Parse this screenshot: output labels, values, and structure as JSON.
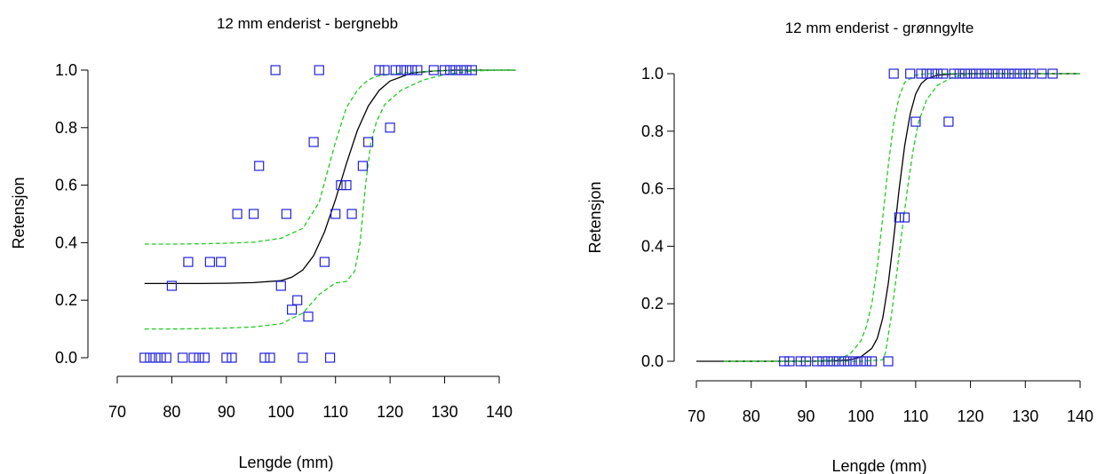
{
  "colors": {
    "points": "#2222dd",
    "fit": "#000000",
    "ci": "#22cc22",
    "axis": "#000000"
  },
  "chart_data": [
    {
      "type": "scatter",
      "title": "12 mm enderist - bergnebb",
      "xlabel": "Lengde (mm)",
      "ylabel": "Retensjon",
      "xlim": [
        70,
        140
      ],
      "ylim": [
        0,
        1
      ],
      "xticks": [
        "70",
        "80",
        "90",
        "100",
        "110",
        "120",
        "130",
        "140"
      ],
      "yticks": [
        "0.0",
        "0.2",
        "0.4",
        "0.6",
        "0.8",
        "1.0"
      ],
      "grid": false,
      "legend": "none",
      "series": [
        {
          "kind": "points",
          "marker": "square-open",
          "x": [
            75,
            76,
            77,
            78,
            79,
            80,
            82,
            83,
            84,
            85,
            86,
            87,
            89,
            90,
            91,
            92,
            95,
            96,
            97,
            98,
            99,
            100,
            101,
            102,
            103,
            104,
            105,
            106,
            107,
            108,
            109,
            110,
            111,
            112,
            113,
            115,
            116,
            118,
            119,
            120,
            121,
            122,
            123,
            124,
            125,
            128,
            130,
            131,
            132,
            133,
            134,
            135
          ],
          "y": [
            0,
            0,
            0,
            0,
            0,
            0.25,
            0,
            0.333,
            0,
            0,
            0,
            0.333,
            0.333,
            0,
            0,
            0.5,
            0.5,
            0.667,
            0,
            0,
            1,
            0.25,
            0.5,
            0.167,
            0.2,
            0,
            0.143,
            0.75,
            1,
            0.333,
            0,
            0.5,
            0.6,
            0.6,
            0.5,
            0.667,
            0.75,
            1,
            1,
            0.8,
            1,
            1,
            1,
            1,
            1,
            1,
            1,
            1,
            1,
            1,
            1,
            1
          ]
        },
        {
          "kind": "line",
          "style": "solid",
          "x": [
            75,
            80,
            85,
            90,
            95,
            100,
            102,
            104,
            106,
            108,
            110,
            112,
            114,
            116,
            118,
            120,
            124,
            128,
            132,
            136,
            140,
            143
          ],
          "y": [
            0.258,
            0.258,
            0.258,
            0.259,
            0.261,
            0.268,
            0.28,
            0.305,
            0.355,
            0.438,
            0.55,
            0.675,
            0.79,
            0.875,
            0.93,
            0.962,
            0.99,
            0.997,
            1,
            1,
            1,
            1
          ]
        },
        {
          "kind": "line",
          "style": "dashed",
          "x": [
            75,
            80,
            85,
            90,
            95,
            100,
            104,
            107,
            110,
            112,
            114,
            115,
            116,
            117,
            118,
            122,
            128,
            135,
            140,
            143
          ],
          "y": [
            0.395,
            0.395,
            0.396,
            0.398,
            0.402,
            0.415,
            0.45,
            0.54,
            0.75,
            0.87,
            0.93,
            0.95,
            0.965,
            0.975,
            0.98,
            0.99,
            0.997,
            1,
            1,
            1
          ]
        },
        {
          "kind": "line",
          "style": "dashed",
          "x": [
            75,
            80,
            85,
            90,
            95,
            100,
            104,
            107,
            110,
            112,
            113.5,
            114.5,
            115.5,
            116.5,
            117.5,
            119,
            122,
            126,
            130,
            135,
            140,
            143
          ],
          "y": [
            0.1,
            0.1,
            0.101,
            0.103,
            0.107,
            0.118,
            0.155,
            0.22,
            0.26,
            0.265,
            0.3,
            0.4,
            0.6,
            0.75,
            0.82,
            0.88,
            0.93,
            0.965,
            0.985,
            0.997,
            1,
            1
          ]
        }
      ]
    },
    {
      "type": "scatter",
      "title": "12 mm enderist - grønngylte",
      "xlabel": "Lengde (mm)",
      "ylabel": "Retensjon",
      "xlim": [
        70,
        140
      ],
      "ylim": [
        0,
        1
      ],
      "xticks": [
        "70",
        "80",
        "90",
        "100",
        "110",
        "120",
        "130",
        "140"
      ],
      "yticks": [
        "0.0",
        "0.2",
        "0.4",
        "0.6",
        "0.8",
        "1.0"
      ],
      "grid": false,
      "legend": "none",
      "series": [
        {
          "kind": "points",
          "marker": "square-open",
          "x": [
            86,
            87,
            89,
            90,
            92,
            93,
            94,
            95,
            96,
            97,
            98,
            99,
            100,
            101,
            102,
            105,
            106,
            107,
            108,
            109,
            110,
            111,
            112,
            113,
            114,
            115,
            116,
            117,
            118,
            119,
            120,
            121,
            122,
            123,
            124,
            125,
            126,
            127,
            128,
            129,
            130,
            131,
            133,
            135
          ],
          "y": [
            0,
            0,
            0,
            0,
            0,
            0,
            0,
            0,
            0,
            0,
            0,
            0,
            0,
            0,
            0,
            0,
            1,
            0.5,
            0.5,
            1,
            0.833,
            1,
            1,
            1,
            1,
            1,
            0.833,
            1,
            1,
            1,
            1,
            1,
            1,
            1,
            1,
            1,
            1,
            1,
            1,
            1,
            1,
            1,
            1,
            1
          ]
        },
        {
          "kind": "line",
          "style": "solid",
          "x": [
            70,
            90,
            95,
            98,
            100,
            102,
            103,
            104,
            105,
            106,
            107,
            108,
            109,
            110,
            111,
            112,
            114,
            118,
            125,
            140
          ],
          "y": [
            0,
            0,
            0.001,
            0.005,
            0.015,
            0.045,
            0.08,
            0.15,
            0.27,
            0.43,
            0.6,
            0.75,
            0.86,
            0.93,
            0.965,
            0.982,
            0.995,
            1,
            1,
            1
          ]
        },
        {
          "kind": "line",
          "style": "dashed",
          "x": [
            75,
            92,
            96,
            98,
            100,
            101,
            102,
            103,
            104,
            105,
            106,
            107,
            108,
            110,
            112,
            120
          ],
          "y": [
            0,
            0.001,
            0.008,
            0.025,
            0.07,
            0.12,
            0.2,
            0.33,
            0.5,
            0.68,
            0.83,
            0.92,
            0.97,
            0.995,
            1,
            1
          ]
        },
        {
          "kind": "line",
          "style": "dashed",
          "x": [
            75,
            100,
            104,
            104.5,
            105.5,
            106.5,
            107.5,
            108.5,
            109.5,
            110.5,
            112,
            114,
            117,
            120,
            125,
            140
          ],
          "y": [
            0,
            0,
            0.005,
            0.03,
            0.15,
            0.3,
            0.45,
            0.6,
            0.73,
            0.83,
            0.91,
            0.96,
            0.99,
            0.998,
            1,
            1
          ]
        }
      ]
    }
  ]
}
